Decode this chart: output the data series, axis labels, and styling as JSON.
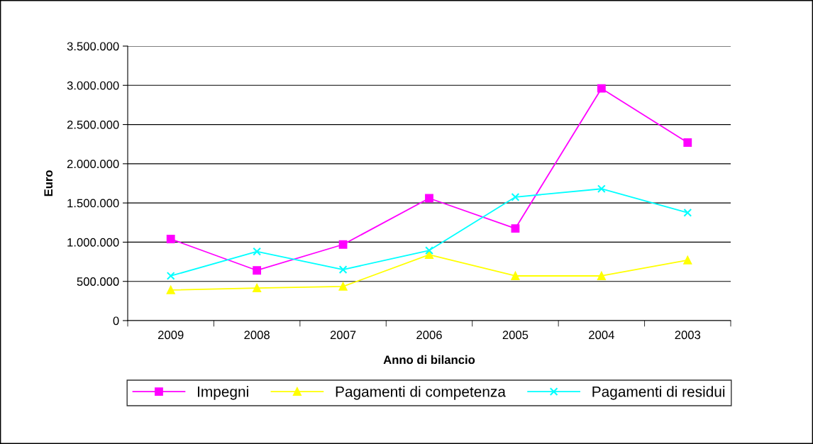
{
  "chart_data": {
    "type": "line",
    "xlabel": "Anno di bilancio",
    "ylabel": "Euro",
    "categories": [
      "2009",
      "2008",
      "2007",
      "2006",
      "2005",
      "2004",
      "2003"
    ],
    "series": [
      {
        "name": "Impegni",
        "color": "#ff00ff",
        "marker": "square",
        "values": [
          1040000,
          640000,
          970000,
          1560000,
          1175000,
          2960000,
          2270000
        ]
      },
      {
        "name": "Pagamenti di competenza",
        "color": "#ffff00",
        "marker": "triangle",
        "values": [
          390000,
          415000,
          435000,
          840000,
          570000,
          570000,
          770000
        ]
      },
      {
        "name": "Pagamenti di residui",
        "color": "#00ffff",
        "marker": "cross",
        "values": [
          570000,
          880000,
          650000,
          895000,
          1575000,
          1680000,
          1375000
        ]
      }
    ],
    "ylim": [
      0,
      3500000
    ],
    "yticks": [
      0,
      {
        "value": 500000,
        "label": "500.000"
      },
      {
        "value": 1000000,
        "label": "1.000.000"
      },
      {
        "value": 1500000,
        "label": "1.500.000"
      },
      {
        "value": 2000000,
        "label": "2.000.000"
      },
      {
        "value": 2500000,
        "label": "2.500.000"
      },
      {
        "value": 3000000,
        "label": "3.000.000"
      },
      {
        "value": 3500000,
        "label": "3.500.000"
      }
    ],
    "grid": "y",
    "legend": "bottom",
    "line_style": "solid"
  }
}
